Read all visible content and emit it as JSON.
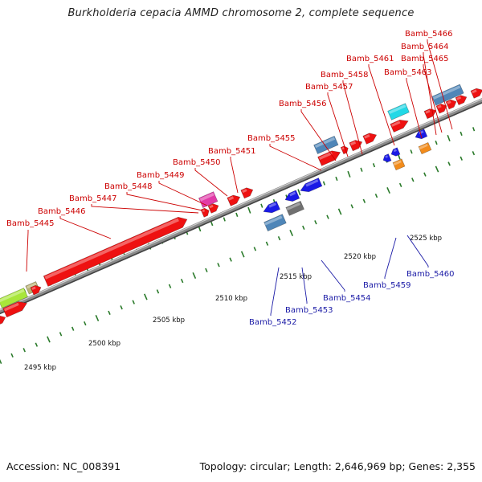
{
  "title": "Burkholderia cepacia AMMD chromosome 2, complete sequence",
  "footer": {
    "accession": "Accession: NC_008391",
    "summary": "Topology: circular; Length: 2,646,969 bp; Genes: 2,355"
  },
  "ticks": [
    "2495 kbp",
    "2500 kbp",
    "2505 kbp",
    "2510 kbp",
    "2515 kbp",
    "2520 kbp",
    "2525 kbp"
  ],
  "genes_forward": [
    "Bamb_5445",
    "Bamb_5446",
    "Bamb_5447",
    "Bamb_5448",
    "Bamb_5449",
    "Bamb_5450",
    "Bamb_5451",
    "Bamb_5455",
    "Bamb_5456",
    "Bamb_5457",
    "Bamb_5458",
    "Bamb_5461",
    "Bamb_5463",
    "Bamb_5464",
    "Bamb_5465",
    "Bamb_5466"
  ],
  "genes_reverse": [
    "Bamb_5452",
    "Bamb_5453",
    "Bamb_5454",
    "Bamb_5459",
    "Bamb_5460"
  ],
  "colors": {
    "forward_label": "#cc0000",
    "reverse_label": "#1a1aa6",
    "tick_mark": "#2a7a2a",
    "backbone": "#8a8a8a",
    "gene_red": "#ee1111",
    "gene_blue": "#1a1ae6",
    "gene_steel": "#4f86b8",
    "gene_cyan": "#22d8e6",
    "gene_magenta": "#e23aa8",
    "gene_orange": "#f28c1c",
    "gene_lime": "#a8e63a",
    "gene_khaki": "#b8b070",
    "gene_gray": "#707070"
  }
}
